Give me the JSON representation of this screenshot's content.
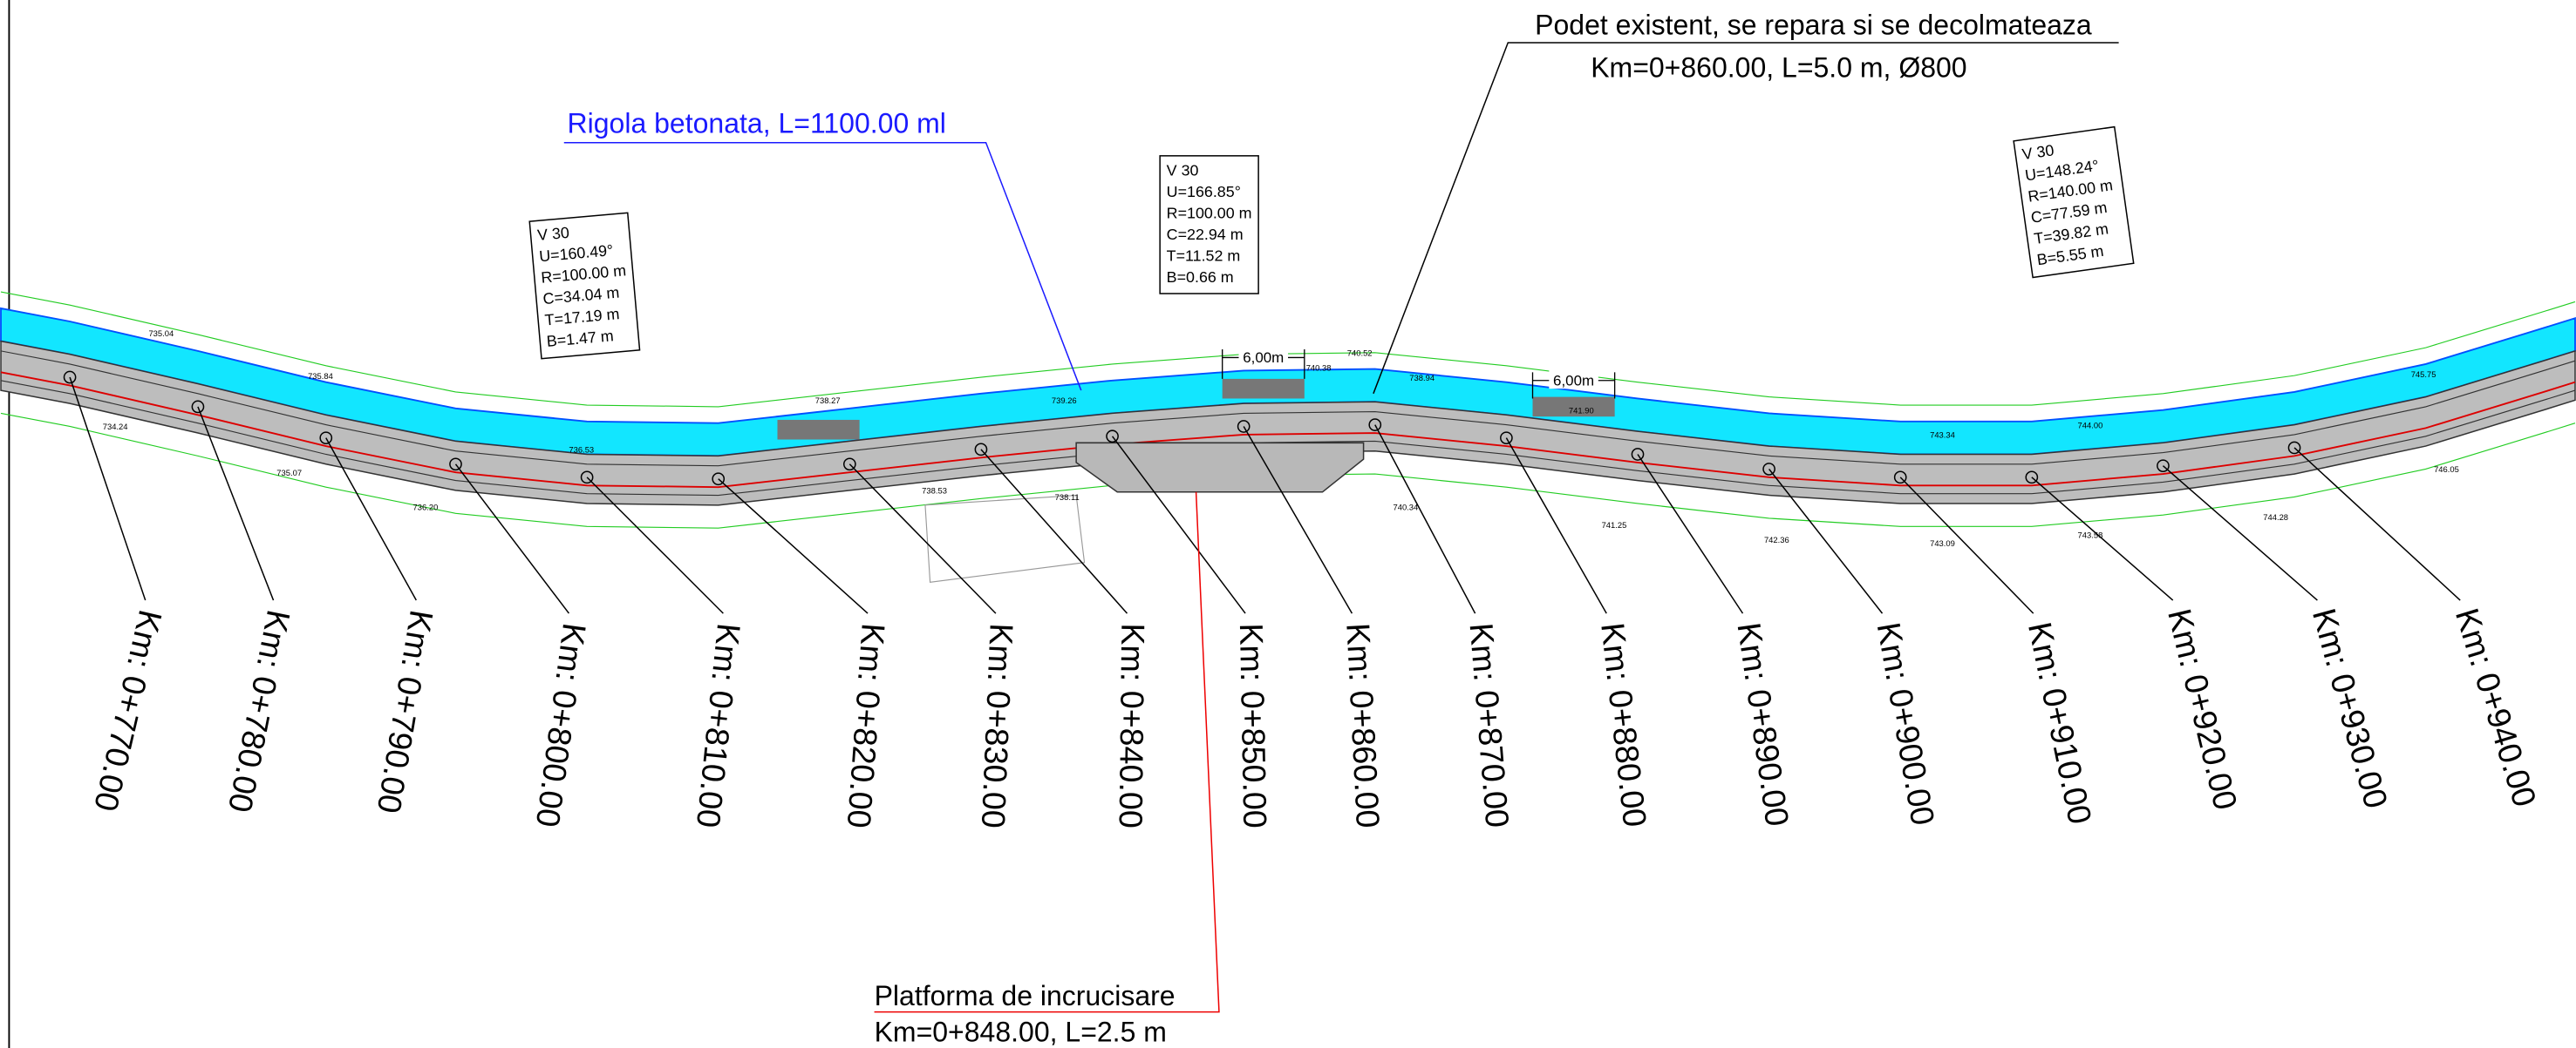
{
  "callouts": {
    "rigola": "Rigola betonata,  L=1100.00 ml",
    "podet": [
      "Podet existent, se repara si se decolmateaza",
      "Km=0+860.00, L=5.0 m, Ø800"
    ],
    "platforma": [
      "Platforma de incrucisare",
      "Km=0+848.00, L=2.5 m"
    ]
  },
  "curves": [
    {
      "lines": [
        "V 30",
        "U=160.49°",
        "R=100.00 m",
        "C=34.04 m",
        "T=17.19 m",
        "B=1.47 m"
      ]
    },
    {
      "lines": [
        "V 30",
        "U=166.85°",
        "R=100.00 m",
        "C=22.94 m",
        "T=11.52 m",
        "B=0.66 m"
      ]
    },
    {
      "lines": [
        "V 30",
        "U=148.24°",
        "R=140.00 m",
        "C=77.59 m",
        "T=39.82 m",
        "B=5.55 m"
      ]
    }
  ],
  "widths": [
    "6,00m",
    "6,00m"
  ],
  "stations": [
    "Km: 0+770.00",
    "Km: 0+780.00",
    "Km: 0+790.00",
    "Km: 0+800.00",
    "Km: 0+810.00",
    "Km: 0+820.00",
    "Km: 0+830.00",
    "Km: 0+840.00",
    "Km: 0+850.00",
    "Km: 0+860.00",
    "Km: 0+870.00",
    "Km: 0+880.00",
    "Km: 0+890.00",
    "Km: 0+900.00",
    "Km: 0+910.00",
    "Km: 0+920.00",
    "Km: 0+930.00",
    "Km: 0+940.00"
  ],
  "elevations": [
    "735.04",
    "734.24",
    "735.07",
    "735.84",
    "736.20",
    "736.53",
    "738.27",
    "738.53",
    "738.11",
    "739.26",
    "740.52",
    "740.38",
    "738.94",
    "741.90",
    "743.34",
    "744.00",
    "745.75",
    "746.05",
    "741.25",
    "742.36",
    "743.09",
    "743.58",
    "744.28",
    "740.34"
  ]
}
